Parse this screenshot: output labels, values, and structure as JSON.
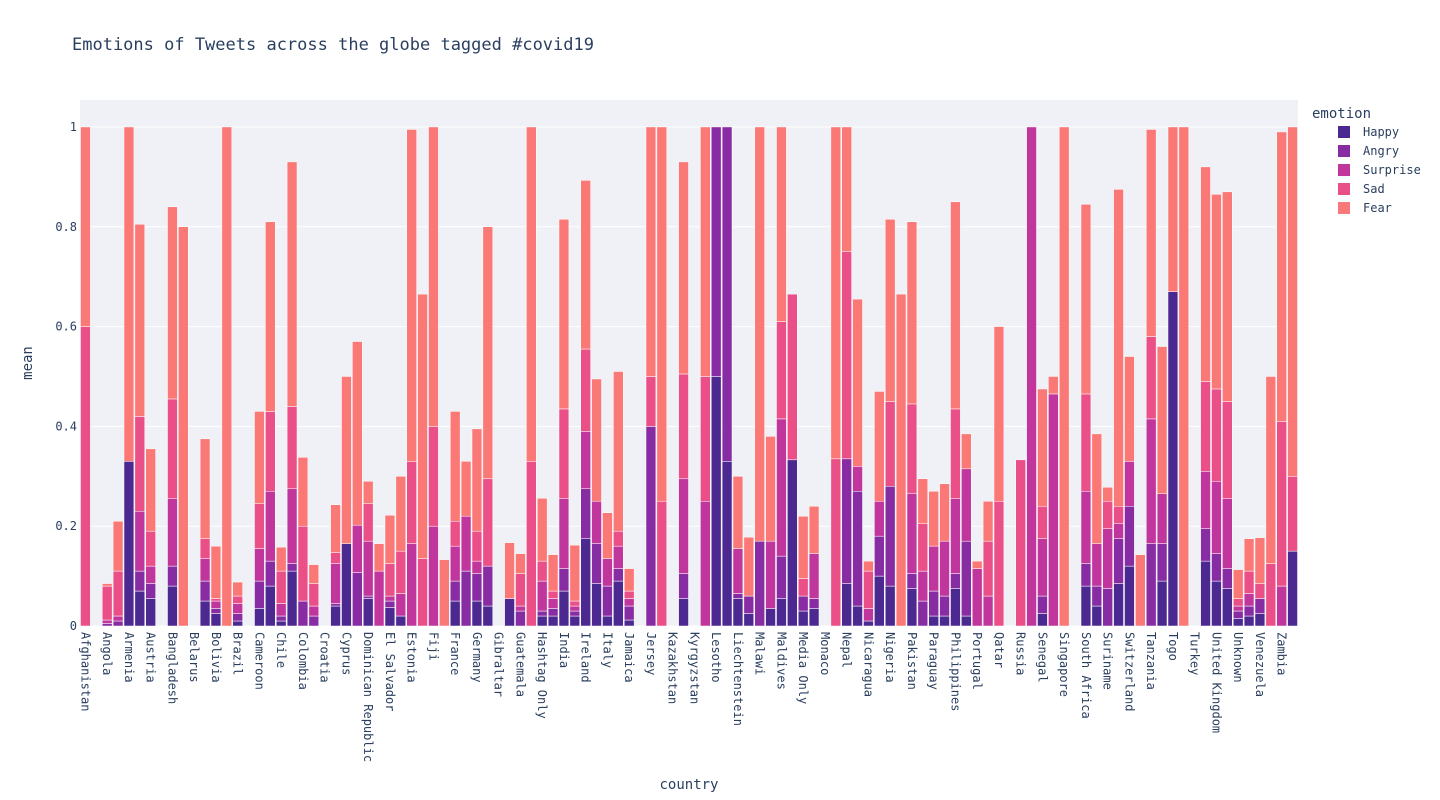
{
  "chart_data": {
    "type": "bar",
    "stacked": true,
    "title": "Emotions of Tweets across the globe tagged #covid19",
    "xlabel": "country",
    "ylabel": "mean",
    "legend_title": "emotion",
    "legend_position": "right",
    "grid": true,
    "ylim": [
      0,
      1.054
    ],
    "yticks": [
      0,
      0.2,
      0.4,
      0.6,
      0.8,
      1
    ],
    "categories": [
      "Afghanistan",
      null,
      "Angola",
      null,
      "Armenia",
      null,
      "Austria",
      null,
      "Bangladesh",
      null,
      "Belarus",
      null,
      "Bolivia",
      null,
      "Brazil",
      null,
      "Cameroon",
      null,
      "Chile",
      null,
      "Colombia",
      null,
      "Croatia",
      null,
      "Cyprus",
      null,
      "Dominican Republic",
      null,
      "El Salvador",
      null,
      "Estonia",
      null,
      "Fiji",
      null,
      "France",
      null,
      "Germany",
      null,
      "Gibraltar",
      null,
      "Guatemala",
      null,
      "Hashtag Only",
      null,
      "India",
      null,
      "Ireland",
      null,
      "Italy",
      null,
      "Jamaica",
      null,
      "Jersey",
      null,
      "Kazakhstan",
      null,
      "Kyrgyzstan",
      null,
      "Lesotho",
      null,
      "Liechtenstein",
      null,
      "Malawi",
      null,
      "Maldives",
      null,
      "Media Only",
      null,
      "Monaco",
      null,
      "Nepal",
      null,
      "Nicaragua",
      null,
      "Nigeria",
      null,
      "Pakistan",
      null,
      "Paraguay",
      null,
      "Philippines",
      null,
      "Portugal",
      null,
      "Qatar",
      null,
      "Russia",
      null,
      "Senegal",
      null,
      "Singapore",
      null,
      "South Africa",
      null,
      "Suriname",
      null,
      "Switzerland",
      null,
      "Tanzania",
      null,
      "Togo",
      null,
      "Turkey",
      null,
      "United Kingdom",
      null,
      "Unknown",
      null,
      "Venezuela",
      null,
      "Zambia",
      null
    ],
    "series": [
      {
        "name": "Happy",
        "color": "#4b2991",
        "values": [
          0,
          0,
          0,
          0,
          0.33,
          0.07,
          0.055,
          0,
          0.08,
          0,
          0,
          0.05,
          0.025,
          0,
          0.01,
          0,
          0.035,
          0.08,
          0.01,
          0.11,
          0,
          0,
          0,
          0.04,
          0.165,
          0,
          0.055,
          0,
          0.037,
          0.02,
          0,
          0,
          0,
          0,
          0.05,
          0,
          0.05,
          0.04,
          0,
          0.055,
          0,
          0,
          0.02,
          0.02,
          0.07,
          0.02,
          0.175,
          0.085,
          0.02,
          0.09,
          0.012,
          0,
          0,
          0,
          0,
          0.055,
          0,
          0,
          0.5,
          0.33,
          0.055,
          0.025,
          0,
          0.035,
          0.055,
          0.333,
          0.03,
          0.035,
          0,
          0,
          0.085,
          0.04,
          0.01,
          0.1,
          0.08,
          0,
          0.075,
          0,
          0.02,
          0.02,
          0.075,
          0.02,
          0,
          0,
          0,
          0,
          0,
          0,
          0.025,
          0,
          0,
          0,
          0.08,
          0.04,
          0,
          0.085,
          0.12,
          0,
          0,
          0.09,
          0.67,
          0,
          0,
          0.13,
          0.09,
          0.075,
          0.015,
          0.02,
          0.025,
          0,
          0,
          0.15
        ]
      },
      {
        "name": "Angry",
        "color": "#872ca2",
        "values": [
          0,
          0,
          0.005,
          0.01,
          0,
          0.04,
          0.03,
          0,
          0.04,
          0,
          0,
          0.04,
          0.01,
          0,
          0.015,
          0,
          0.055,
          0.05,
          0.01,
          0.015,
          0.05,
          0.02,
          0,
          0.005,
          0,
          0.107,
          0.005,
          0,
          0.013,
          0,
          0,
          0,
          0,
          0,
          0.04,
          0.11,
          0.055,
          0.08,
          0,
          0,
          0.03,
          0,
          0.01,
          0.015,
          0.045,
          0.01,
          0.1,
          0.08,
          0.06,
          0.025,
          0.028,
          0,
          0.4,
          0,
          0,
          0.05,
          0,
          0,
          0.5,
          0.67,
          0.01,
          0.035,
          0.17,
          0,
          0.085,
          0,
          0.03,
          0.02,
          0,
          0,
          0.25,
          0.23,
          0,
          0.08,
          0.2,
          0,
          0.03,
          0.05,
          0.05,
          0.04,
          0.03,
          0.15,
          0,
          0,
          0,
          0,
          0,
          0,
          0.035,
          0,
          0,
          0,
          0.045,
          0.04,
          0.075,
          0.09,
          0.12,
          0,
          0.165,
          0.075,
          0,
          0,
          0,
          0.065,
          0.055,
          0.04,
          0.015,
          0.02,
          0.03,
          0,
          0,
          0
        ]
      },
      {
        "name": "Surprise",
        "color": "#c0369d",
        "values": [
          0,
          0,
          0.007,
          0.01,
          0,
          0.12,
          0.035,
          0,
          0.135,
          0,
          0,
          0.045,
          0.015,
          0,
          0.02,
          0,
          0.065,
          0.14,
          0.025,
          0.15,
          0,
          0.02,
          0,
          0.08,
          0,
          0.095,
          0.11,
          0.11,
          0.01,
          0.045,
          0.165,
          0,
          0.2,
          0,
          0.07,
          0.11,
          0.025,
          0,
          0,
          0,
          0.01,
          0,
          0.06,
          0.02,
          0.14,
          0.01,
          0.115,
          0.085,
          0.055,
          0.045,
          0.015,
          0,
          0,
          0,
          0,
          0.19,
          0,
          0.25,
          0,
          0,
          0.09,
          0,
          0,
          0.135,
          0.275,
          0,
          0,
          0.09,
          0,
          0,
          0,
          0.05,
          0.025,
          0.07,
          0,
          0,
          0.16,
          0.06,
          0.09,
          0.11,
          0.15,
          0.145,
          0.115,
          0.06,
          0,
          0,
          0,
          1,
          0.115,
          0.465,
          0,
          0,
          0.145,
          0.085,
          0.12,
          0.03,
          0.09,
          0,
          0.25,
          0.1,
          0,
          0,
          0,
          0.115,
          0.145,
          0.14,
          0.01,
          0.025,
          0,
          0,
          0.08,
          0
        ]
      },
      {
        "name": "Sad",
        "color": "#ea4f88",
        "values": [
          0.6,
          0,
          0.068,
          0.09,
          0,
          0.19,
          0.07,
          0,
          0.2,
          0,
          0,
          0.04,
          0.005,
          0,
          0.015,
          0,
          0.09,
          0.16,
          0.065,
          0.165,
          0.15,
          0.045,
          0,
          0.022,
          0,
          0,
          0.075,
          0,
          0.065,
          0.085,
          0.165,
          0.135,
          0.2,
          0,
          0.05,
          0,
          0.06,
          0.175,
          0,
          0,
          0.065,
          0.33,
          0.04,
          0.015,
          0.18,
          0.01,
          0.165,
          0,
          0,
          0.03,
          0.015,
          0,
          0.1,
          0.25,
          0,
          0.21,
          0,
          0.25,
          0,
          0,
          0,
          0,
          0,
          0,
          0.195,
          0.332,
          0.035,
          0,
          0,
          0.335,
          0.415,
          0,
          0.075,
          0,
          0.17,
          0,
          0.18,
          0.095,
          0,
          0,
          0.18,
          0,
          0,
          0.11,
          0.25,
          0,
          0.333,
          0,
          0.065,
          0,
          0,
          0,
          0.195,
          0,
          0.055,
          0.035,
          0,
          0,
          0.165,
          0,
          0,
          0,
          0,
          0.18,
          0.185,
          0.195,
          0.015,
          0.045,
          0.03,
          0.125,
          0.33,
          0.15
        ]
      },
      {
        "name": "Fear",
        "color": "#fa7876",
        "values": [
          0.4,
          0,
          0.005,
          0.1,
          0.67,
          0.385,
          0.165,
          0,
          0.385,
          0.8,
          0,
          0.2,
          0.105,
          1,
          0.028,
          0,
          0.185,
          0.38,
          0.048,
          0.49,
          0.138,
          0.038,
          0,
          0.096,
          0.335,
          0.368,
          0.045,
          0.055,
          0.097,
          0.15,
          0.665,
          0.53,
          0.6,
          0.133,
          0.22,
          0.11,
          0.205,
          0.505,
          0,
          0.112,
          0.04,
          0.67,
          0.126,
          0.073,
          0.38,
          0.112,
          0.338,
          0.245,
          0.092,
          0.32,
          0.045,
          0,
          0.5,
          0.75,
          0,
          0.425,
          0,
          0.5,
          0,
          0,
          0.145,
          0.118,
          0.83,
          0.21,
          0.39,
          0,
          0.125,
          0.095,
          0,
          0.665,
          0.25,
          0.335,
          0.02,
          0.22,
          0.365,
          0.665,
          0.365,
          0.09,
          0.11,
          0.115,
          0.415,
          0.07,
          0.015,
          0.08,
          0.35,
          0,
          0,
          0,
          0.235,
          0.035,
          1,
          0,
          0.38,
          0.22,
          0.028,
          0.635,
          0.21,
          0.143,
          0.415,
          0.295,
          0.33,
          1,
          0,
          0.43,
          0.39,
          0.42,
          0.058,
          0.065,
          0.092,
          0.375,
          0.58,
          0.7
        ]
      }
    ]
  }
}
